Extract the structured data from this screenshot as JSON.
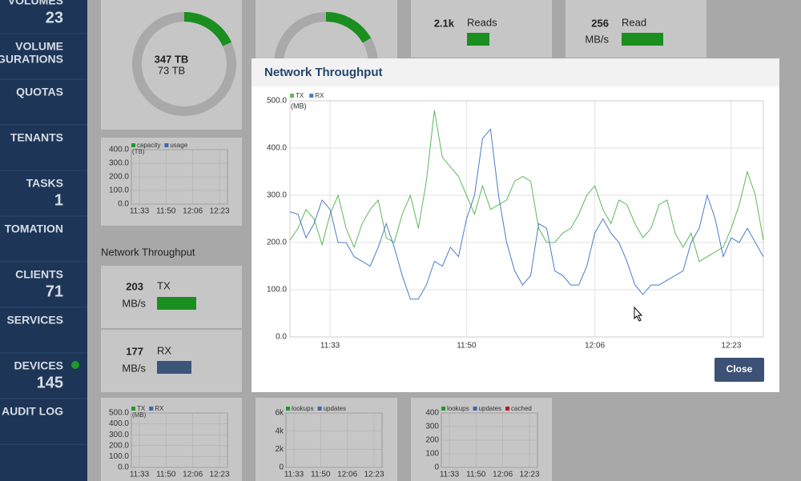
{
  "sidebar": [
    {
      "lines": [
        "VOLUMES"
      ],
      "count": 23
    },
    {
      "lines": [
        "VOLUME",
        "GURATIONS"
      ]
    },
    {
      "lines": [
        "QUOTAS"
      ]
    },
    {
      "lines": [
        "TENANTS"
      ]
    },
    {
      "lines": [
        "TASKS"
      ],
      "count": 1
    },
    {
      "lines": [
        "TOMATION"
      ]
    },
    {
      "lines": [
        "CLIENTS"
      ],
      "count": 71
    },
    {
      "lines": [
        "SERVICES"
      ]
    },
    {
      "lines": [
        "DEVICES"
      ],
      "count": 145
    },
    {
      "lines": [
        "AUDIT LOG"
      ]
    }
  ],
  "cards": {
    "capacity": {
      "total": "347 TB",
      "used": "73 TB"
    },
    "reads": {
      "value": "2.1k",
      "label": "Reads"
    },
    "read": {
      "value": 256,
      "unit": "MB/s",
      "label": "Read"
    },
    "section": "Network Throughput",
    "tx": {
      "value": 203,
      "unit": "MB/s",
      "label": "TX"
    },
    "rx": {
      "value": 177,
      "unit": "MB/s",
      "label": "RX"
    }
  },
  "mini_charts": [
    {
      "legend": [
        {
          "name": "capacity",
          "color": "#1e9a2c"
        },
        {
          "name": "usage",
          "color": "#3f67a8"
        }
      ],
      "unit": "(TB)",
      "yticks": [
        "400.0",
        "300.0",
        "200.0",
        "100.0",
        "0.0"
      ],
      "xticks": [
        "11:33",
        "11:50",
        "12:06",
        "12:23"
      ]
    },
    {
      "legend": [
        {
          "name": "TX",
          "color": "#1e9a2c"
        },
        {
          "name": "RX",
          "color": "#3f67a8"
        }
      ],
      "unit": "(MB)",
      "yticks": [
        "500.0",
        "400.0",
        "300.0",
        "200.0",
        "100.0",
        "0.0"
      ],
      "xticks": [
        "11:33",
        "11:50",
        "12:06",
        "12:23"
      ]
    },
    {
      "legend": [
        {
          "name": "lookups",
          "color": "#1e9a2c"
        },
        {
          "name": "updates",
          "color": "#3f67a8"
        }
      ],
      "yticks": [
        "6k",
        "4k",
        "2k",
        "0"
      ],
      "xticks": [
        "11:33",
        "11:50",
        "12:06",
        "12:23"
      ]
    },
    {
      "legend": [
        {
          "name": "lookups",
          "color": "#1e9a2c"
        },
        {
          "name": "updates",
          "color": "#3f67a8"
        },
        {
          "name": "cached",
          "color": "#b02020"
        }
      ],
      "yticks": [
        "400",
        "300",
        "200",
        "100",
        "0"
      ],
      "xticks": [
        "11:33",
        "11:50",
        "12:06",
        "12:23"
      ]
    }
  ],
  "modal": {
    "title": "Network Throughput",
    "close": "Close"
  },
  "chart_data": {
    "type": "line",
    "y_label": "(MB)",
    "categories": [
      "11:28",
      "11:29",
      "11:30",
      "11:31",
      "11:32",
      "11:33",
      "11:34",
      "11:35",
      "11:36",
      "11:37",
      "11:38",
      "11:39",
      "11:40",
      "11:41",
      "11:42",
      "11:43",
      "11:44",
      "11:45",
      "11:46",
      "11:47",
      "11:48",
      "11:49",
      "11:50",
      "11:51",
      "11:52",
      "11:53",
      "11:54",
      "11:55",
      "11:56",
      "11:57",
      "11:58",
      "11:59",
      "12:00",
      "12:01",
      "12:02",
      "12:03",
      "12:04",
      "12:05",
      "12:06",
      "12:07",
      "12:08",
      "12:09",
      "12:10",
      "12:11",
      "12:12",
      "12:13",
      "12:14",
      "12:15",
      "12:16",
      "12:17",
      "12:18",
      "12:19",
      "12:20",
      "12:21",
      "12:22",
      "12:23",
      "12:24",
      "12:25",
      "12:26",
      "12:27"
    ],
    "series": [
      {
        "name": "TX",
        "color": "#5cb85c",
        "values": [
          205,
          230,
          270,
          250,
          195,
          260,
          300,
          230,
          190,
          240,
          270,
          290,
          210,
          200,
          260,
          300,
          230,
          330,
          480,
          380,
          360,
          340,
          300,
          260,
          320,
          270,
          280,
          290,
          330,
          340,
          330,
          230,
          200,
          200,
          220,
          230,
          260,
          300,
          320,
          270,
          240,
          290,
          280,
          240,
          210,
          230,
          280,
          290,
          220,
          190,
          220,
          160,
          170,
          180,
          190,
          230,
          280,
          350,
          300,
          205
        ]
      },
      {
        "name": "RX",
        "color": "#4a7cc9",
        "values": [
          265,
          260,
          210,
          240,
          290,
          270,
          200,
          200,
          170,
          160,
          150,
          190,
          240,
          190,
          130,
          80,
          80,
          110,
          160,
          150,
          190,
          170,
          250,
          300,
          420,
          440,
          300,
          200,
          140,
          110,
          130,
          240,
          230,
          140,
          130,
          110,
          110,
          150,
          220,
          250,
          220,
          200,
          160,
          110,
          90,
          110,
          110,
          120,
          130,
          140,
          200,
          230,
          300,
          250,
          170,
          210,
          200,
          230,
          200,
          170
        ]
      }
    ],
    "ylim": [
      0,
      500
    ],
    "yticks": [
      {
        "value": 0,
        "label": "0.0"
      },
      {
        "value": 100,
        "label": "100.0"
      },
      {
        "value": 200,
        "label": "200.0"
      },
      {
        "value": 300,
        "label": "300.0"
      },
      {
        "value": 400,
        "label": "400.0"
      },
      {
        "value": 500,
        "label": "500.0"
      }
    ],
    "xticks": [
      "11:33",
      "11:50",
      "12:06",
      "12:23"
    ],
    "grid": true
  }
}
